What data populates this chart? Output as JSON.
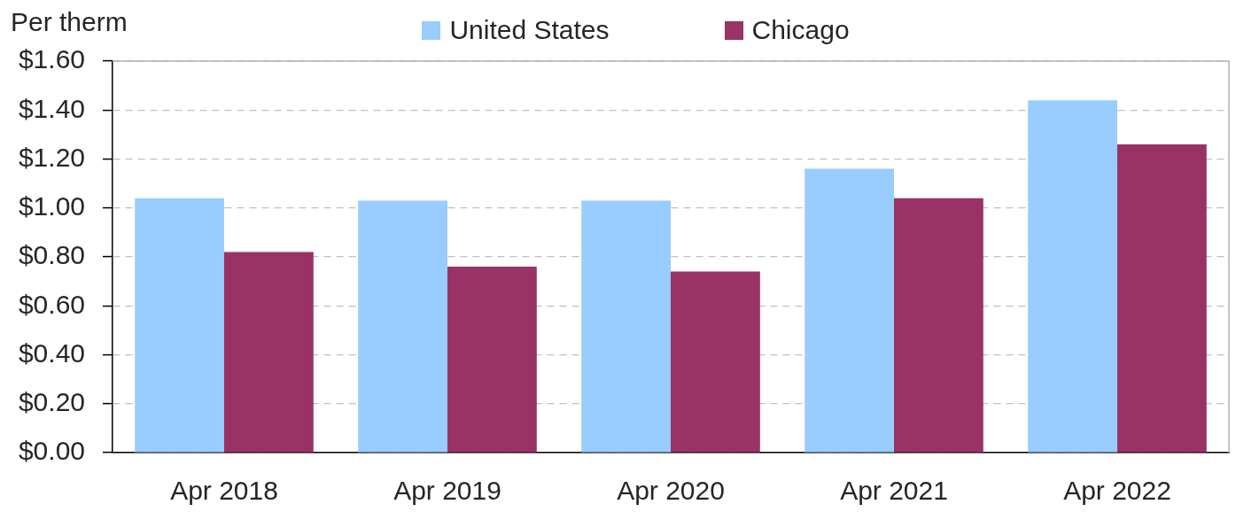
{
  "chart_data": {
    "type": "bar",
    "ylabel": "Per therm",
    "categories": [
      "Apr 2018",
      "Apr 2019",
      "Apr 2020",
      "Apr 2021",
      "Apr 2022"
    ],
    "series": [
      {
        "name": "United States",
        "color": "#99ccff",
        "values": [
          1.04,
          1.03,
          1.03,
          1.16,
          1.44
        ]
      },
      {
        "name": "Chicago",
        "color": "#993366",
        "values": [
          0.82,
          0.76,
          0.74,
          1.04,
          1.26
        ]
      }
    ],
    "ylim": [
      0,
      1.6
    ],
    "yticks": [
      {
        "value": 0,
        "label": "$0.00"
      },
      {
        "value": 0.2,
        "label": "$0.20"
      },
      {
        "value": 0.4,
        "label": "$0.40"
      },
      {
        "value": 0.6,
        "label": "$0.60"
      },
      {
        "value": 0.8,
        "label": "$0.80"
      },
      {
        "value": 1,
        "label": "$1.00"
      },
      {
        "value": 1.2,
        "label": "$1.20"
      },
      {
        "value": 1.4,
        "label": "$1.40"
      },
      {
        "value": 1.6,
        "label": "$1.60"
      }
    ],
    "grid": "y",
    "legend": "top"
  }
}
